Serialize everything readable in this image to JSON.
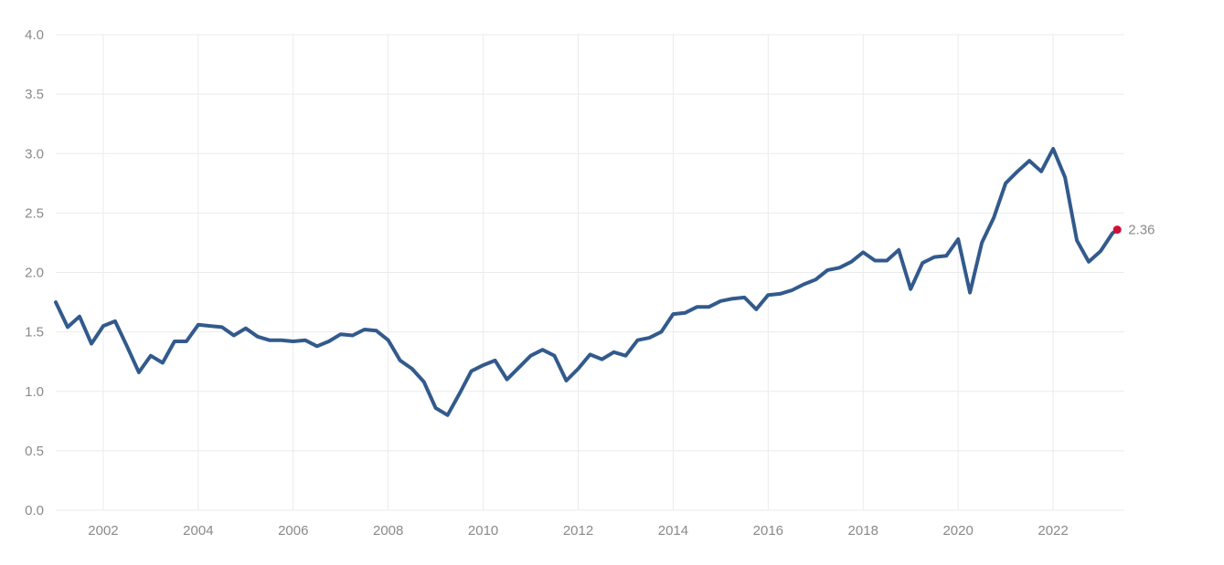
{
  "chart_data": {
    "type": "line",
    "title": "",
    "xlabel": "",
    "ylabel": "",
    "xlim": [
      2001.0,
      2023.5
    ],
    "ylim": [
      0,
      4
    ],
    "yticks": [
      "0.0",
      "0.5",
      "1.0",
      "1.5",
      "2.0",
      "2.5",
      "3.0",
      "3.5",
      "4.0"
    ],
    "ytick_values": [
      0,
      0.5,
      1.0,
      1.5,
      2.0,
      2.5,
      3.0,
      3.5,
      4.0
    ],
    "xticks": [
      "2002",
      "2004",
      "2006",
      "2008",
      "2010",
      "2012",
      "2014",
      "2016",
      "2018",
      "2020",
      "2022"
    ],
    "xtick_values": [
      2002,
      2004,
      2006,
      2008,
      2010,
      2012,
      2014,
      2016,
      2018,
      2020,
      2022
    ],
    "grid": true,
    "legend": "none",
    "series": [
      {
        "color": "#325a8c",
        "points": [
          [
            2001.0,
            1.75
          ],
          [
            2001.25,
            1.54
          ],
          [
            2001.5,
            1.63
          ],
          [
            2001.75,
            1.4
          ],
          [
            2002.0,
            1.55
          ],
          [
            2002.25,
            1.59
          ],
          [
            2002.5,
            1.38
          ],
          [
            2002.75,
            1.16
          ],
          [
            2003.0,
            1.3
          ],
          [
            2003.25,
            1.24
          ],
          [
            2003.5,
            1.42
          ],
          [
            2003.75,
            1.42
          ],
          [
            2004.0,
            1.56
          ],
          [
            2004.25,
            1.55
          ],
          [
            2004.5,
            1.54
          ],
          [
            2004.75,
            1.47
          ],
          [
            2005.0,
            1.53
          ],
          [
            2005.25,
            1.46
          ],
          [
            2005.5,
            1.43
          ],
          [
            2005.75,
            1.43
          ],
          [
            2006.0,
            1.42
          ],
          [
            2006.25,
            1.43
          ],
          [
            2006.5,
            1.38
          ],
          [
            2006.75,
            1.42
          ],
          [
            2007.0,
            1.48
          ],
          [
            2007.25,
            1.47
          ],
          [
            2007.5,
            1.52
          ],
          [
            2007.75,
            1.51
          ],
          [
            2008.0,
            1.43
          ],
          [
            2008.25,
            1.26
          ],
          [
            2008.5,
            1.19
          ],
          [
            2008.75,
            1.08
          ],
          [
            2009.0,
            0.86
          ],
          [
            2009.25,
            0.8
          ],
          [
            2009.5,
            0.98
          ],
          [
            2009.75,
            1.17
          ],
          [
            2010.0,
            1.22
          ],
          [
            2010.25,
            1.26
          ],
          [
            2010.5,
            1.1
          ],
          [
            2010.75,
            1.2
          ],
          [
            2011.0,
            1.3
          ],
          [
            2011.25,
            1.35
          ],
          [
            2011.5,
            1.3
          ],
          [
            2011.75,
            1.09
          ],
          [
            2012.0,
            1.19
          ],
          [
            2012.25,
            1.31
          ],
          [
            2012.5,
            1.27
          ],
          [
            2012.75,
            1.33
          ],
          [
            2013.0,
            1.3
          ],
          [
            2013.25,
            1.43
          ],
          [
            2013.5,
            1.45
          ],
          [
            2013.75,
            1.5
          ],
          [
            2014.0,
            1.65
          ],
          [
            2014.25,
            1.66
          ],
          [
            2014.5,
            1.71
          ],
          [
            2014.75,
            1.71
          ],
          [
            2015.0,
            1.76
          ],
          [
            2015.25,
            1.78
          ],
          [
            2015.5,
            1.79
          ],
          [
            2015.75,
            1.69
          ],
          [
            2016.0,
            1.81
          ],
          [
            2016.25,
            1.82
          ],
          [
            2016.5,
            1.85
          ],
          [
            2016.75,
            1.9
          ],
          [
            2017.0,
            1.94
          ],
          [
            2017.25,
            2.02
          ],
          [
            2017.5,
            2.04
          ],
          [
            2017.75,
            2.09
          ],
          [
            2018.0,
            2.17
          ],
          [
            2018.25,
            2.1
          ],
          [
            2018.5,
            2.1
          ],
          [
            2018.75,
            2.19
          ],
          [
            2019.0,
            1.86
          ],
          [
            2019.25,
            2.08
          ],
          [
            2019.5,
            2.13
          ],
          [
            2019.75,
            2.14
          ],
          [
            2020.0,
            2.28
          ],
          [
            2020.25,
            1.83
          ],
          [
            2020.5,
            2.25
          ],
          [
            2020.75,
            2.46
          ],
          [
            2021.0,
            2.75
          ],
          [
            2021.25,
            2.85
          ],
          [
            2021.5,
            2.94
          ],
          [
            2021.75,
            2.85
          ],
          [
            2022.0,
            3.04
          ],
          [
            2022.25,
            2.8
          ],
          [
            2022.5,
            2.27
          ],
          [
            2022.75,
            2.09
          ],
          [
            2023.0,
            2.18
          ],
          [
            2023.25,
            2.33
          ],
          [
            2023.35,
            2.36
          ]
        ]
      }
    ],
    "annotations": [
      {
        "text": "2.36",
        "x": 2023.35,
        "y": 2.36,
        "marker_color": "#d0103a"
      }
    ]
  }
}
